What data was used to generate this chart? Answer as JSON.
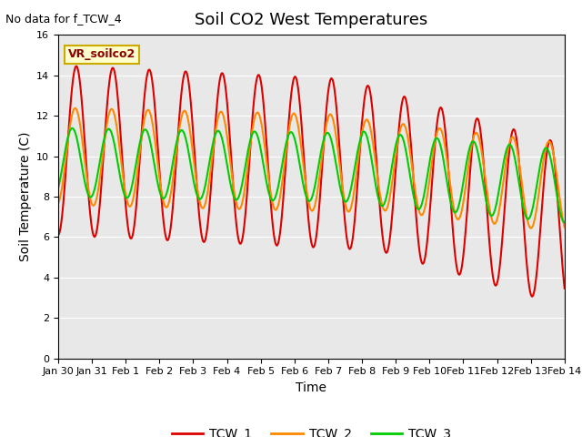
{
  "title": "Soil CO2 West Temperatures",
  "topleft_text": "No data for f_TCW_4",
  "xlabel": "Time",
  "ylabel": "Soil Temperature (C)",
  "ylim": [
    0,
    16
  ],
  "yticks": [
    0,
    2,
    4,
    6,
    8,
    10,
    12,
    14,
    16
  ],
  "bg_color": "#e8e8e8",
  "legend_label": "VR_soilco2",
  "series": {
    "TCW_1": {
      "color": "#dd0000",
      "lw": 1.5
    },
    "TCW_2": {
      "color": "#ff8800",
      "lw": 1.5
    },
    "TCW_3": {
      "color": "#00cc00",
      "lw": 1.5
    }
  },
  "xlim": [
    0,
    15
  ],
  "xtick_positions": [
    0,
    1,
    2,
    3,
    4,
    5,
    6,
    7,
    8,
    9,
    10,
    11,
    12,
    13,
    14,
    15
  ],
  "xtick_labels": [
    "Jan 30",
    "Jan 31",
    "Feb 1",
    "Feb 2",
    "Feb 3",
    "Feb 4",
    "Feb 5",
    "Feb 6",
    "Feb 7",
    "Feb 8",
    "Feb 9",
    "Feb 10",
    "Feb 11",
    "Feb 12",
    "Feb 13",
    "Feb 14"
  ]
}
